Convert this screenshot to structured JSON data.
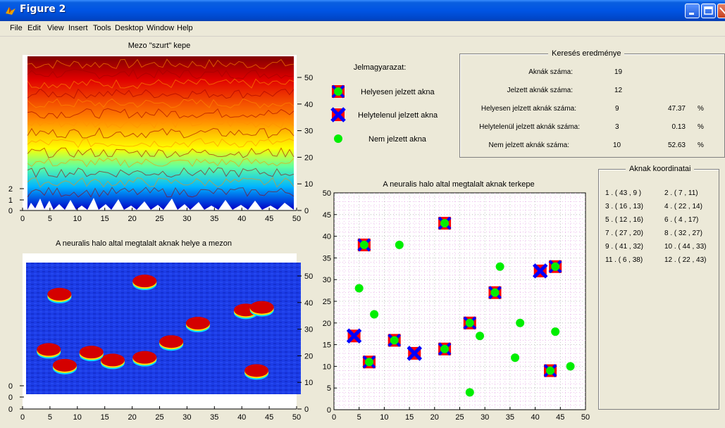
{
  "window": {
    "title": "Figure 2"
  },
  "menu": [
    "File",
    "Edit",
    "View",
    "Insert",
    "Tools",
    "Desktop",
    "Window",
    "Help"
  ],
  "legend": {
    "title": "Jelmagyarazat:",
    "items": [
      "Helyesen jelzett akna",
      "Helytelenul jelzett akna",
      "Nem jelzett akna"
    ]
  },
  "results": {
    "title": "Keresés eredménye",
    "rows": [
      {
        "label": "Aknák száma:",
        "value": "19",
        "pct": "",
        "unit": ""
      },
      {
        "label": "Jelzett aknák száma:",
        "value": "12",
        "pct": "",
        "unit": ""
      },
      {
        "label": "Helyesen jelzett aknák száma:",
        "value": "9",
        "pct": "47.37",
        "unit": "%"
      },
      {
        "label": "Helytelenül jelzett aknák száma:",
        "value": "3",
        "pct": "0.13",
        "unit": "%"
      },
      {
        "label": "Nem jelzett aknák száma:",
        "value": "10",
        "pct": "52.63",
        "unit": "%"
      }
    ]
  },
  "coords": {
    "title": "Aknak koordinatai",
    "items": [
      "1 . ( 43 , 9 )",
      "2 . ( 7 , 11)",
      "3 . ( 16 , 13)",
      "4 . ( 22 , 14)",
      "5 . ( 12 , 16)",
      "6 . ( 4 , 17)",
      "7 . ( 27 , 20)",
      "8 . ( 32 , 27)",
      "9 . ( 41 , 32)",
      "10 . ( 44 , 33)",
      "11 . ( 6 , 38)",
      "12 . ( 22 , 43)"
    ]
  },
  "colors": {
    "correct_outer": "#ff0000",
    "wrong": "#0000ff",
    "unmarked": "#00ee00",
    "field_blue": "#1a3ee0"
  },
  "chart_data": [
    {
      "type": "heatmap",
      "title": "Mezo \"szurt\" kepe",
      "xlim": [
        0,
        50
      ],
      "xticks": [
        "0",
        "5",
        "10",
        "15",
        "20",
        "25",
        "30",
        "35",
        "40",
        "45",
        "50"
      ],
      "yticks_right": [
        "0",
        "10",
        "20",
        "30",
        "40",
        "50"
      ],
      "yticks_left": [
        "0",
        "1",
        "2"
      ]
    },
    {
      "type": "heatmap",
      "title": "A neuralis halo altal megtalalt aknak helye a mezon",
      "xlim": [
        0,
        50
      ],
      "xticks": [
        "0",
        "5",
        "10",
        "15",
        "20",
        "25",
        "30",
        "35",
        "40",
        "45",
        "50"
      ],
      "yticks_right": [
        "0",
        "10",
        "20",
        "30",
        "40",
        "50"
      ],
      "yticks_left": [
        "0",
        "0",
        "0"
      ],
      "blobs": [
        [
          43,
          9
        ],
        [
          7,
          11
        ],
        [
          16,
          13
        ],
        [
          22,
          14
        ],
        [
          12,
          16
        ],
        [
          4,
          17
        ],
        [
          27,
          20
        ],
        [
          32,
          27
        ],
        [
          41,
          32
        ],
        [
          44,
          33
        ],
        [
          6,
          38
        ],
        [
          22,
          43
        ]
      ]
    },
    {
      "type": "scatter",
      "title": "A neuralis halo altal megtalalt aknak terkepe",
      "xlim": [
        0,
        50
      ],
      "ylim": [
        0,
        50
      ],
      "xticks": [
        "0",
        "5",
        "10",
        "15",
        "20",
        "25",
        "30",
        "35",
        "40",
        "45",
        "50"
      ],
      "yticks": [
        "0",
        "5",
        "10",
        "15",
        "20",
        "25",
        "30",
        "35",
        "40",
        "45",
        "50"
      ],
      "grid": true,
      "series": [
        {
          "name": "Helyesen jelzett akna",
          "points": [
            [
              6,
              38
            ],
            [
              22,
              43
            ],
            [
              32,
              27
            ],
            [
              27,
              20
            ],
            [
              12,
              16
            ],
            [
              22,
              14
            ],
            [
              7,
              11
            ],
            [
              43,
              9
            ],
            [
              44,
              33
            ]
          ]
        },
        {
          "name": "Helytelenul jelzett akna",
          "points": [
            [
              4,
              17
            ],
            [
              16,
              13
            ],
            [
              41,
              32
            ]
          ]
        },
        {
          "name": "Nem jelzett akna",
          "points": [
            [
              13,
              38
            ],
            [
              5,
              28
            ],
            [
              8,
              22
            ],
            [
              29,
              17
            ],
            [
              33,
              33
            ],
            [
              37,
              20
            ],
            [
              36,
              12
            ],
            [
              44,
              18
            ],
            [
              47,
              10
            ],
            [
              27,
              4
            ]
          ]
        }
      ]
    }
  ]
}
